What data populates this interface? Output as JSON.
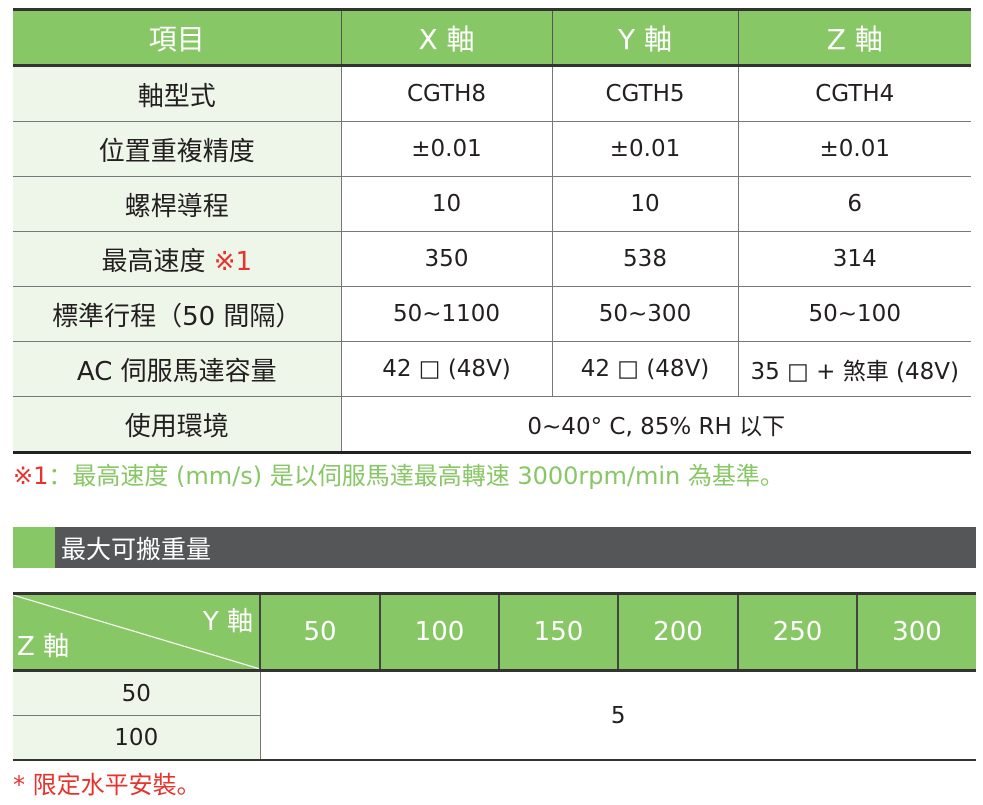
{
  "spec_table": {
    "headers": [
      "項目",
      "X 軸",
      "Y 軸",
      "Z 軸"
    ],
    "rows": [
      {
        "label": "軸型式",
        "values": [
          "CGTH8",
          "CGTH5",
          "CGTH4"
        ]
      },
      {
        "label": "位置重複精度",
        "values": [
          "±0.01",
          "±0.01",
          "±0.01"
        ]
      },
      {
        "label": "螺桿導程",
        "values": [
          "10",
          "10",
          "6"
        ]
      },
      {
        "label": "最高速度",
        "mark": "※1",
        "values": [
          "350",
          "538",
          "314"
        ]
      },
      {
        "label": "標準行程（50 間隔）",
        "values": [
          "50~1100",
          "50~300",
          "50~100"
        ]
      },
      {
        "label": "AC 伺服馬達容量",
        "values": [
          "42 □ (48V)",
          "42 □ (48V)",
          "35 □ + 煞車 (48V)"
        ]
      },
      {
        "label": "使用環境",
        "value": "0~40° C, 85% RH 以下"
      }
    ]
  },
  "note1": {
    "mark": "※1",
    "text": "：最高速度 (mm/s) 是以伺服馬達最高轉速 3000rpm/min 為基準。"
  },
  "section_title": "最大可搬重量",
  "load_table": {
    "y_axis": "Y 軸",
    "z_axis": "Z 軸",
    "y_values": [
      "50",
      "100",
      "150",
      "200",
      "250",
      "300"
    ],
    "z_values": [
      "50",
      "100"
    ],
    "value": "5"
  },
  "note2": "* 限定水平安裝。",
  "colors": {
    "green": "#88c765",
    "dark": "#555658",
    "red": "#e8322c",
    "label_bg": "#eef6ea"
  }
}
